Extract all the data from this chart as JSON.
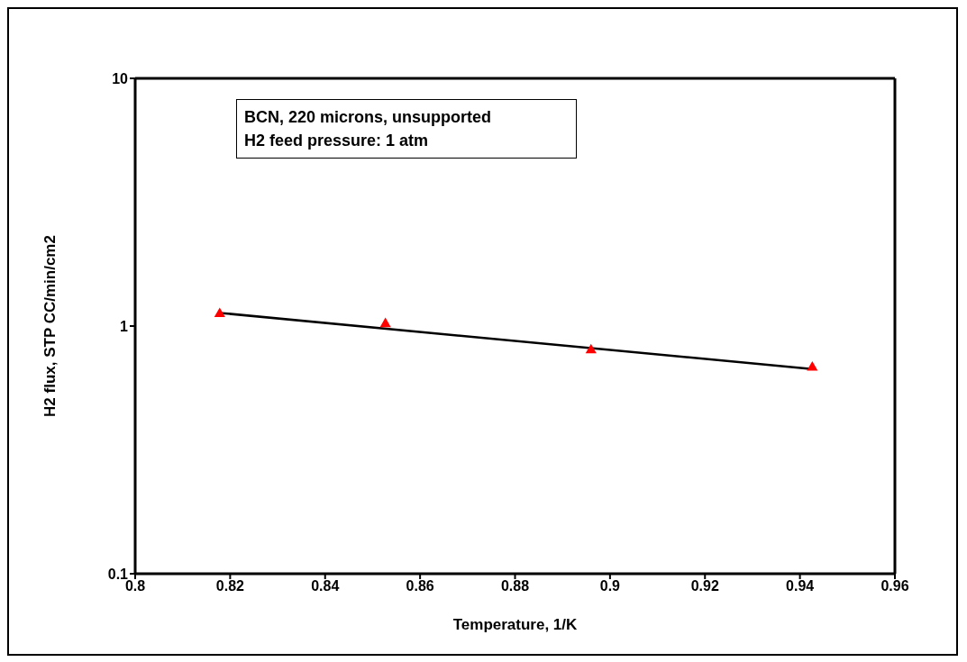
{
  "chart_data": {
    "type": "scatter",
    "xlabel": "Temperature, 1/K",
    "ylabel": "H2 flux, STP CC/min/cm2",
    "annotations": [
      "BCN, 220 microns, unsupported",
      "H2 feed pressure: 1 atm"
    ],
    "xlim": [
      0.8,
      0.96
    ],
    "xticks": [
      0.8,
      0.82,
      0.84,
      0.86,
      0.88,
      0.9,
      0.92,
      0.94,
      0.96
    ],
    "ylim": [
      0.1,
      10
    ],
    "yticks": [
      0.1,
      1,
      10
    ],
    "log": "y",
    "series": [
      {
        "type": "scatter",
        "marker": "triangle",
        "color": "#ff0000",
        "x": [
          0.8178,
          0.8527,
          0.896,
          0.9426
        ],
        "values": [
          1.12,
          1.02,
          0.8,
          0.68
        ]
      },
      {
        "type": "line",
        "marker": "none",
        "color": "#000000",
        "x": [
          0.8178,
          0.9426
        ],
        "values": [
          1.13,
          0.67
        ]
      }
    ]
  }
}
